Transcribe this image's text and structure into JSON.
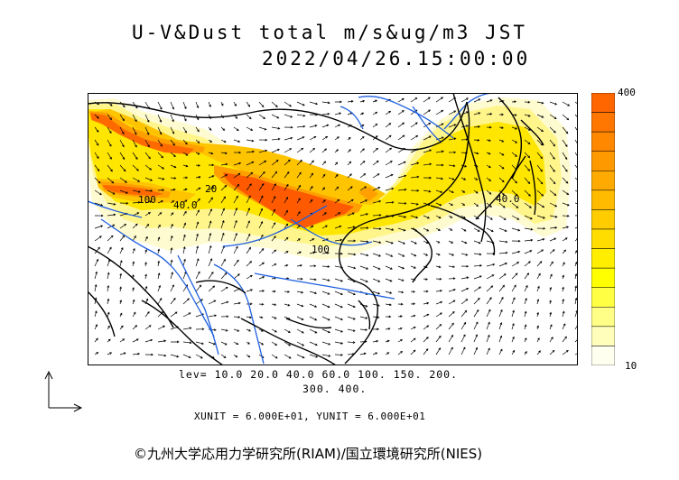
{
  "title": {
    "line1": "U-V&Dust total m/s&ug/m3 JST",
    "line2": "2022/04/26.15:00:00"
  },
  "colorbar": {
    "max_label": "400",
    "min_label": "10",
    "colors": [
      "#ff6600",
      "#ff7700",
      "#ff8800",
      "#ff9900",
      "#ffaa00",
      "#ffbb00",
      "#ffcc00",
      "#ffdd00",
      "#ffee00",
      "#ffff00",
      "#ffff44",
      "#ffff88",
      "#ffffbb",
      "#fffff0"
    ]
  },
  "contour_labels": {
    "left_a": "100",
    "left_b": "40.0",
    "mid": "20",
    "right": "40.0",
    "bottom": "100"
  },
  "levels": {
    "line1": "lev= 10.0 20.0 40.0 60.0 100. 150. 200.",
    "line2": "300. 400."
  },
  "units_text": "XUNIT = 6.000E+01, YUNIT = 6.000E+01",
  "credit": "©九州大学応用力学研究所(RIAM)/国立環境研究所(NIES)",
  "colors": {
    "coast": "#000000",
    "rivers": "#1f5fe0",
    "dust_high": "#ff5a00",
    "dust_low": "#fffbc8"
  }
}
